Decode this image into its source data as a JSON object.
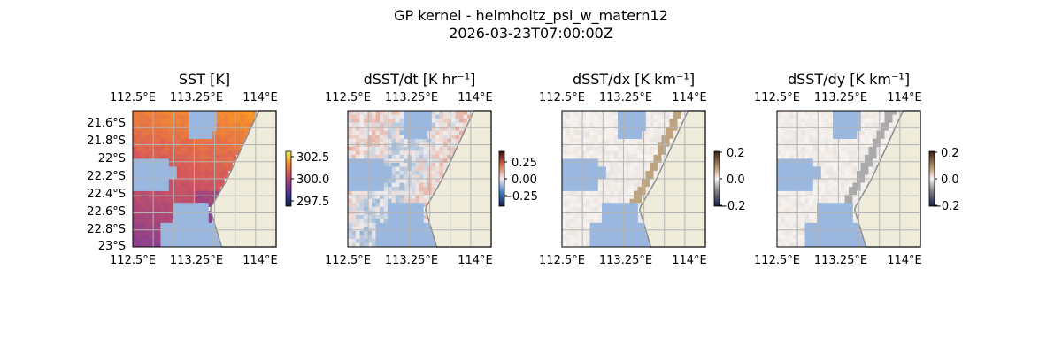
{
  "figure": {
    "title_line1": "GP kernel - helmholtz_psi_w_matern12",
    "title_line2": "2026-03-23T07:00:00Z"
  },
  "colors": {
    "land": "#efecdc",
    "coast": "#8c8c8c",
    "mask": "#9ab7e0",
    "grid": "#b4b4b4"
  },
  "chart_data": [
    {
      "type": "heatmap",
      "title": "SST [K]",
      "x_ticks": [
        "112.5°E",
        "113.25°E",
        "114°E"
      ],
      "y_ticks": [
        "21.6°S",
        "21.8°S",
        "22°S",
        "22.2°S",
        "22.4°S",
        "22.6°S",
        "22.8°S",
        "23°S"
      ],
      "lon_range": [
        112.5,
        114.2
      ],
      "lat_range": [
        -23.03,
        -21.53
      ],
      "colormap": "thermal",
      "colorbar": {
        "ticks": [
          "302.5",
          "300.0",
          "297.5"
        ],
        "vmin": 297,
        "vmax": 303.2
      }
    },
    {
      "type": "heatmap",
      "title": "dSST/dt [K hr⁻¹]",
      "x_ticks": [
        "112.5°E",
        "113.25°E",
        "114°E"
      ],
      "lon_range": [
        112.5,
        114.2
      ],
      "lat_range": [
        -23.03,
        -21.53
      ],
      "colormap": "diverging-balance",
      "colorbar": {
        "ticks": [
          "0.25",
          "0.00",
          "−0.25"
        ],
        "vmin": -0.35,
        "vmax": 0.35
      }
    },
    {
      "type": "heatmap",
      "title": "dSST/dx [K km⁻¹]",
      "x_ticks": [
        "112.5°E",
        "113.25°E",
        "114°E"
      ],
      "lon_range": [
        112.5,
        114.2
      ],
      "lat_range": [
        -23.03,
        -21.53
      ],
      "colormap": "diverging-curl",
      "colorbar": {
        "ticks": [
          "0.2",
          "0.0",
          "−0.2"
        ],
        "vmin": -0.2,
        "vmax": 0.2
      }
    },
    {
      "type": "heatmap",
      "title": "dSST/dy [K km⁻¹]",
      "x_ticks": [
        "112.5°E",
        "113.25°E",
        "114°E"
      ],
      "lon_range": [
        112.5,
        114.2
      ],
      "lat_range": [
        -23.03,
        -21.53
      ],
      "colormap": "diverging-curl",
      "colorbar": {
        "ticks": [
          "0.2",
          "0.0",
          "−0.2"
        ],
        "vmin": -0.2,
        "vmax": 0.2
      }
    }
  ]
}
